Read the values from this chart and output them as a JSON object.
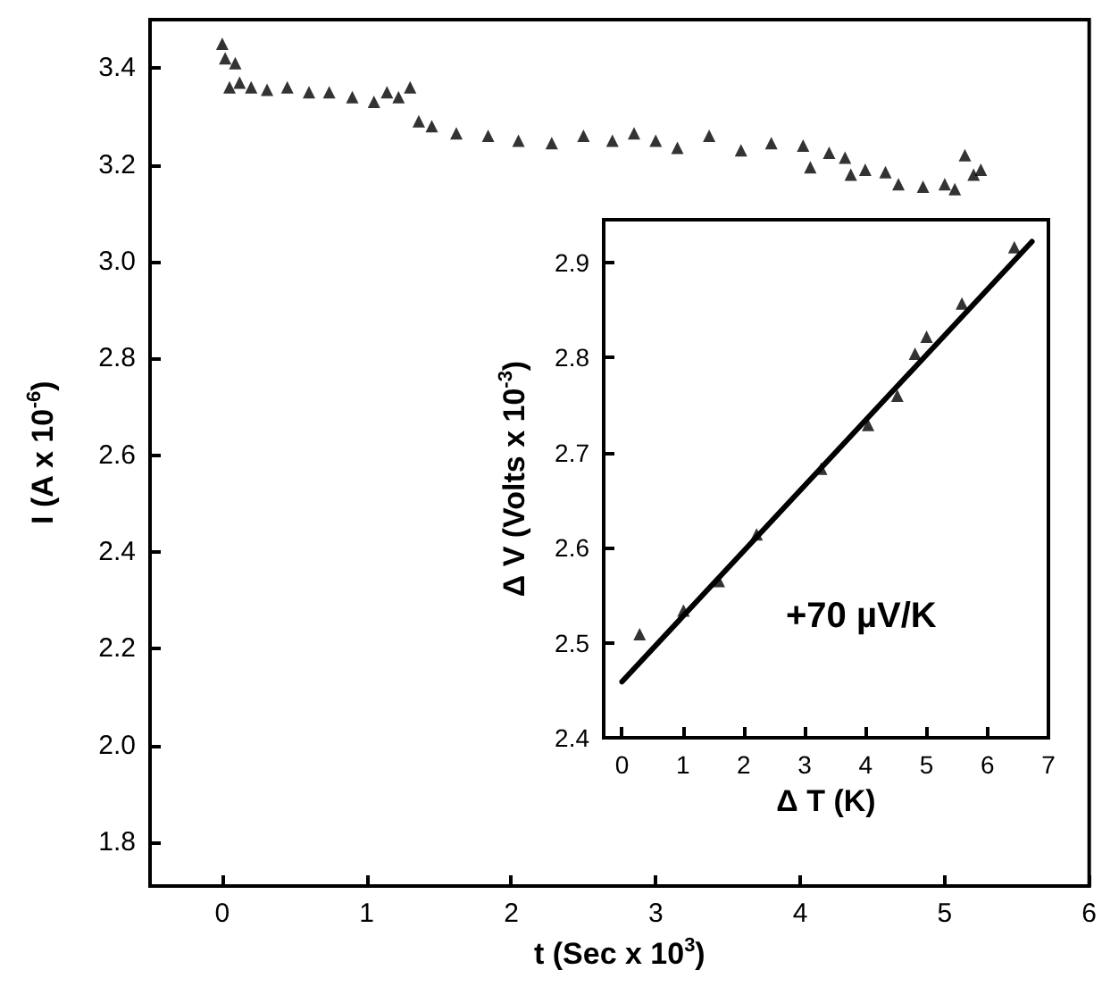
{
  "chart_data": [
    {
      "type": "scatter",
      "xlabel": "t (Sec x 10$^{3}$)",
      "ylabel": "I (A x 10$^{-6}$)",
      "x": [
        0,
        0.02,
        0.05,
        0.09,
        0.12,
        0.2,
        0.31,
        0.45,
        0.6,
        0.74,
        0.9,
        1.05,
        1.14,
        1.22,
        1.3,
        1.36,
        1.45,
        1.62,
        1.84,
        2.05,
        2.28,
        2.5,
        2.7,
        2.85,
        3.0,
        3.15,
        3.37,
        3.59,
        3.8,
        4.02,
        4.07,
        4.2,
        4.31,
        4.35,
        4.45,
        4.59,
        4.68,
        4.85,
        5.0,
        5.07,
        5.14,
        5.2,
        5.25
      ],
      "series": [
        {
          "color": "#000000",
          "marker": "triangle",
          "values": [
            3.45,
            3.42,
            3.36,
            3.41,
            3.37,
            3.36,
            3.355,
            3.36,
            3.35,
            3.35,
            3.34,
            3.33,
            3.35,
            3.34,
            3.36,
            3.29,
            3.28,
            3.265,
            3.26,
            3.25,
            3.245,
            3.26,
            3.25,
            3.265,
            3.25,
            3.235,
            3.26,
            3.23,
            3.245,
            3.24,
            3.195,
            3.225,
            3.215,
            3.18,
            3.19,
            3.185,
            3.16,
            3.155,
            3.16,
            3.15,
            3.22,
            3.18,
            3.19
          ]
        }
      ],
      "xlim": [
        -0.5,
        6
      ],
      "xticks": [
        0,
        1,
        2,
        3,
        4,
        5,
        6
      ],
      "ylim": [
        1.71,
        3.5
      ],
      "yticks": [
        1.8,
        {
          "value": 2,
          "label": "2.0"
        },
        2.2,
        2.4,
        2.6,
        2.8,
        {
          "value": 3,
          "label": "3.0"
        },
        3.2,
        3.4
      ]
    },
    {
      "type": "scatter",
      "xlabel": "Δ T (K)",
      "ylabel": "Δ V (Volts x 10$^{-3}$)",
      "x": [
        0.29,
        1.01,
        1.59,
        2.21,
        3.27,
        4.04,
        4.52,
        4.81,
        5.0,
        5.58,
        6.44
      ],
      "series": [
        {
          "color": "#000000",
          "marker": "triangle",
          "values": [
            2.509,
            2.534,
            2.565,
            2.614,
            2.683,
            2.729,
            2.76,
            2.804,
            2.822,
            2.857,
            2.916
          ]
        },
        {
          "type": "line",
          "color": "#000000",
          "marker": "none",
          "x": [
            0,
            6.73
          ],
          "values": [
            2.459,
            2.922
          ]
        }
      ],
      "annotations": [
        "+70 µV/K"
      ],
      "xlim": [
        -0.3,
        7
      ],
      "xticks": [
        0,
        1,
        2,
        3,
        4,
        5,
        6,
        7
      ],
      "ylim": [
        2.4,
        2.945
      ],
      "yticks": [
        2.4,
        2.5,
        2.6,
        2.7,
        2.8,
        2.9
      ]
    }
  ]
}
